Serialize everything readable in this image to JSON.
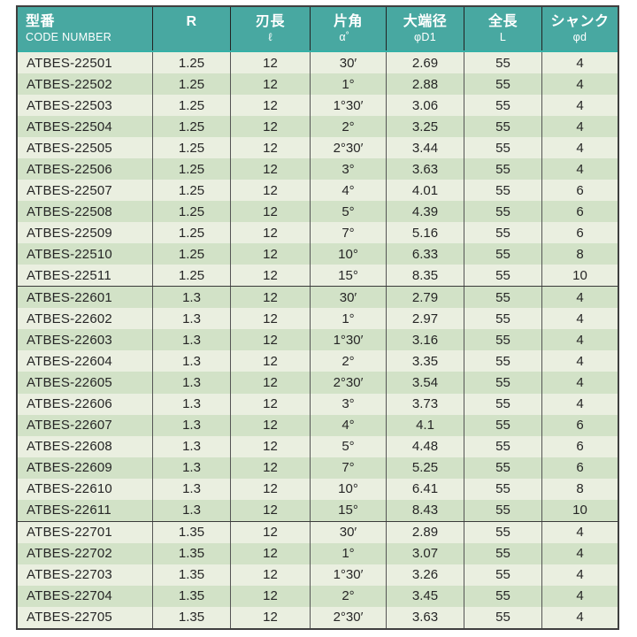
{
  "colors": {
    "header_bg": "#48a8a1",
    "header_text": "#ffffff",
    "row_light": "#eaefe0",
    "row_dark": "#d2e2c7",
    "border_outer": "#3f3f3f",
    "border_column": "#555555",
    "text": "#262626"
  },
  "table": {
    "header": {
      "columns": [
        {
          "line1": "型番",
          "line2": "CODE NUMBER"
        },
        {
          "line1": "R",
          "line2": ""
        },
        {
          "line1": "刃長",
          "line2": "ℓ"
        },
        {
          "line1": "片角",
          "line2": "α゜"
        },
        {
          "line1": "大端径",
          "line2": "φD1"
        },
        {
          "line1": "全長",
          "line2": "L"
        },
        {
          "line1": "シャンク",
          "line2": "φd"
        }
      ]
    },
    "groups": [
      {
        "rows": [
          {
            "code": "ATBES-22501",
            "r": "1.25",
            "flute_length": "12",
            "angle": "30′",
            "d1": "2.69",
            "overall_length": "55",
            "shank": "4"
          },
          {
            "code": "ATBES-22502",
            "r": "1.25",
            "flute_length": "12",
            "angle": "1°",
            "d1": "2.88",
            "overall_length": "55",
            "shank": "4"
          },
          {
            "code": "ATBES-22503",
            "r": "1.25",
            "flute_length": "12",
            "angle": "1°30′",
            "d1": "3.06",
            "overall_length": "55",
            "shank": "4"
          },
          {
            "code": "ATBES-22504",
            "r": "1.25",
            "flute_length": "12",
            "angle": "2°",
            "d1": "3.25",
            "overall_length": "55",
            "shank": "4"
          },
          {
            "code": "ATBES-22505",
            "r": "1.25",
            "flute_length": "12",
            "angle": "2°30′",
            "d1": "3.44",
            "overall_length": "55",
            "shank": "4"
          },
          {
            "code": "ATBES-22506",
            "r": "1.25",
            "flute_length": "12",
            "angle": "3°",
            "d1": "3.63",
            "overall_length": "55",
            "shank": "4"
          },
          {
            "code": "ATBES-22507",
            "r": "1.25",
            "flute_length": "12",
            "angle": "4°",
            "d1": "4.01",
            "overall_length": "55",
            "shank": "6"
          },
          {
            "code": "ATBES-22508",
            "r": "1.25",
            "flute_length": "12",
            "angle": "5°",
            "d1": "4.39",
            "overall_length": "55",
            "shank": "6"
          },
          {
            "code": "ATBES-22509",
            "r": "1.25",
            "flute_length": "12",
            "angle": "7°",
            "d1": "5.16",
            "overall_length": "55",
            "shank": "6"
          },
          {
            "code": "ATBES-22510",
            "r": "1.25",
            "flute_length": "12",
            "angle": "10°",
            "d1": "6.33",
            "overall_length": "55",
            "shank": "8"
          },
          {
            "code": "ATBES-22511",
            "r": "1.25",
            "flute_length": "12",
            "angle": "15°",
            "d1": "8.35",
            "overall_length": "55",
            "shank": "10"
          }
        ]
      },
      {
        "rows": [
          {
            "code": "ATBES-22601",
            "r": "1.3",
            "flute_length": "12",
            "angle": "30′",
            "d1": "2.79",
            "overall_length": "55",
            "shank": "4"
          },
          {
            "code": "ATBES-22602",
            "r": "1.3",
            "flute_length": "12",
            "angle": "1°",
            "d1": "2.97",
            "overall_length": "55",
            "shank": "4"
          },
          {
            "code": "ATBES-22603",
            "r": "1.3",
            "flute_length": "12",
            "angle": "1°30′",
            "d1": "3.16",
            "overall_length": "55",
            "shank": "4"
          },
          {
            "code": "ATBES-22604",
            "r": "1.3",
            "flute_length": "12",
            "angle": "2°",
            "d1": "3.35",
            "overall_length": "55",
            "shank": "4"
          },
          {
            "code": "ATBES-22605",
            "r": "1.3",
            "flute_length": "12",
            "angle": "2°30′",
            "d1": "3.54",
            "overall_length": "55",
            "shank": "4"
          },
          {
            "code": "ATBES-22606",
            "r": "1.3",
            "flute_length": "12",
            "angle": "3°",
            "d1": "3.73",
            "overall_length": "55",
            "shank": "4"
          },
          {
            "code": "ATBES-22607",
            "r": "1.3",
            "flute_length": "12",
            "angle": "4°",
            "d1": "4.1",
            "overall_length": "55",
            "shank": "6"
          },
          {
            "code": "ATBES-22608",
            "r": "1.3",
            "flute_length": "12",
            "angle": "5°",
            "d1": "4.48",
            "overall_length": "55",
            "shank": "6"
          },
          {
            "code": "ATBES-22609",
            "r": "1.3",
            "flute_length": "12",
            "angle": "7°",
            "d1": "5.25",
            "overall_length": "55",
            "shank": "6"
          },
          {
            "code": "ATBES-22610",
            "r": "1.3",
            "flute_length": "12",
            "angle": "10°",
            "d1": "6.41",
            "overall_length": "55",
            "shank": "8"
          },
          {
            "code": "ATBES-22611",
            "r": "1.3",
            "flute_length": "12",
            "angle": "15°",
            "d1": "8.43",
            "overall_length": "55",
            "shank": "10"
          }
        ]
      },
      {
        "rows": [
          {
            "code": "ATBES-22701",
            "r": "1.35",
            "flute_length": "12",
            "angle": "30′",
            "d1": "2.89",
            "overall_length": "55",
            "shank": "4"
          },
          {
            "code": "ATBES-22702",
            "r": "1.35",
            "flute_length": "12",
            "angle": "1°",
            "d1": "3.07",
            "overall_length": "55",
            "shank": "4"
          },
          {
            "code": "ATBES-22703",
            "r": "1.35",
            "flute_length": "12",
            "angle": "1°30′",
            "d1": "3.26",
            "overall_length": "55",
            "shank": "4"
          },
          {
            "code": "ATBES-22704",
            "r": "1.35",
            "flute_length": "12",
            "angle": "2°",
            "d1": "3.45",
            "overall_length": "55",
            "shank": "4"
          },
          {
            "code": "ATBES-22705",
            "r": "1.35",
            "flute_length": "12",
            "angle": "2°30′",
            "d1": "3.63",
            "overall_length": "55",
            "shank": "4"
          }
        ]
      }
    ]
  }
}
